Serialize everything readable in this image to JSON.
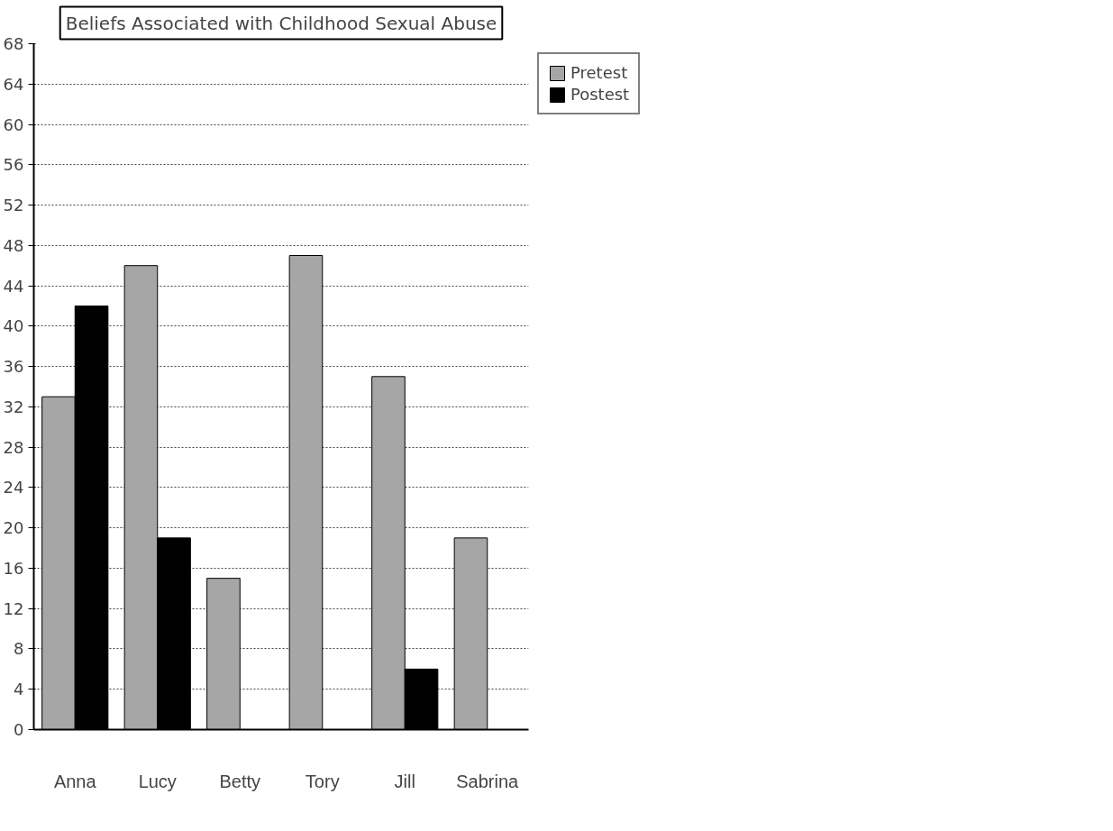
{
  "chart_data": {
    "type": "bar",
    "title": "Beliefs Associated with Childhood Sexual Abuse",
    "categories": [
      "Anna",
      "Lucy",
      "Betty",
      "Tory",
      "Jill",
      "Sabrina"
    ],
    "series": [
      {
        "name": "Pretest",
        "color": "#a6a6a6",
        "values": [
          33,
          46,
          15,
          47,
          35,
          19
        ]
      },
      {
        "name": "Postest",
        "color": "#000000",
        "values": [
          42,
          19,
          null,
          null,
          6,
          null
        ]
      }
    ],
    "ylim": [
      0,
      68
    ],
    "yticks": [
      0,
      4,
      8,
      12,
      16,
      20,
      24,
      28,
      32,
      36,
      40,
      44,
      48,
      52,
      56,
      60,
      64,
      68
    ],
    "grid": "y",
    "legend": "top right"
  }
}
